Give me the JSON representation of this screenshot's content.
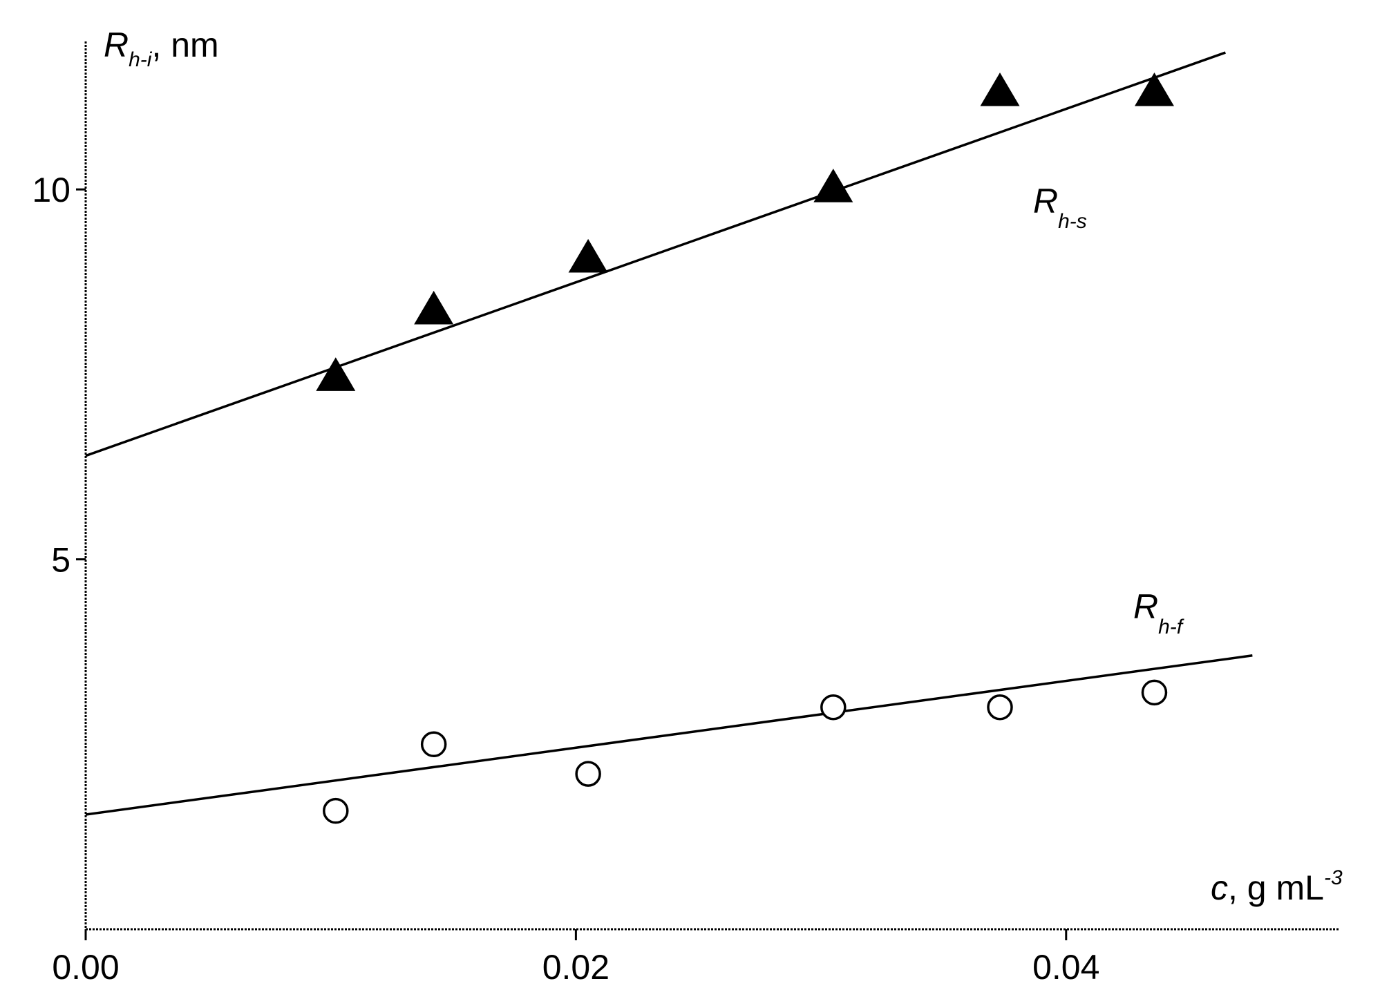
{
  "chart_data": {
    "type": "scatter",
    "xlabel": {
      "symbol": "c",
      "unit": "g mL",
      "exponent": "-3"
    },
    "ylabel": {
      "symbol": "R",
      "subscript": "h-i",
      "unit": "nm"
    },
    "xlim": [
      0.0,
      0.049
    ],
    "ylim": [
      0.0,
      12.0
    ],
    "x_ticks": [
      {
        "value": 0.0,
        "label": "0.00"
      },
      {
        "value": 0.02,
        "label": "0.02"
      },
      {
        "value": 0.04,
        "label": "0.04"
      }
    ],
    "y_ticks": [
      {
        "value": 5,
        "label": "5"
      },
      {
        "value": 10,
        "label": "10"
      }
    ],
    "grid": false,
    "series": [
      {
        "name": "R h-s",
        "label_symbol": "R",
        "label_subscript": "h-s",
        "marker": "filled-triangle",
        "color": "#000000",
        "points": [
          {
            "x": 0.0102,
            "y": 7.45
          },
          {
            "x": 0.0142,
            "y": 8.35
          },
          {
            "x": 0.0205,
            "y": 9.05
          },
          {
            "x": 0.0305,
            "y": 10.0
          },
          {
            "x": 0.0373,
            "y": 11.3
          },
          {
            "x": 0.0436,
            "y": 11.3
          }
        ],
        "fit": {
          "x0": 0.0,
          "y0": 6.4,
          "x1": 0.0465,
          "y1": 11.85
        }
      },
      {
        "name": "R h-f",
        "label_symbol": "R",
        "label_subscript": "h-f",
        "marker": "open-circle",
        "color": "#000000",
        "points": [
          {
            "x": 0.0102,
            "y": 1.6
          },
          {
            "x": 0.0142,
            "y": 2.5
          },
          {
            "x": 0.0205,
            "y": 2.1
          },
          {
            "x": 0.0305,
            "y": 3.0
          },
          {
            "x": 0.0373,
            "y": 3.0
          },
          {
            "x": 0.0436,
            "y": 3.2
          }
        ],
        "fit": {
          "x0": 0.0,
          "y0": 1.55,
          "x1": 0.0476,
          "y1": 3.7
        }
      }
    ]
  }
}
